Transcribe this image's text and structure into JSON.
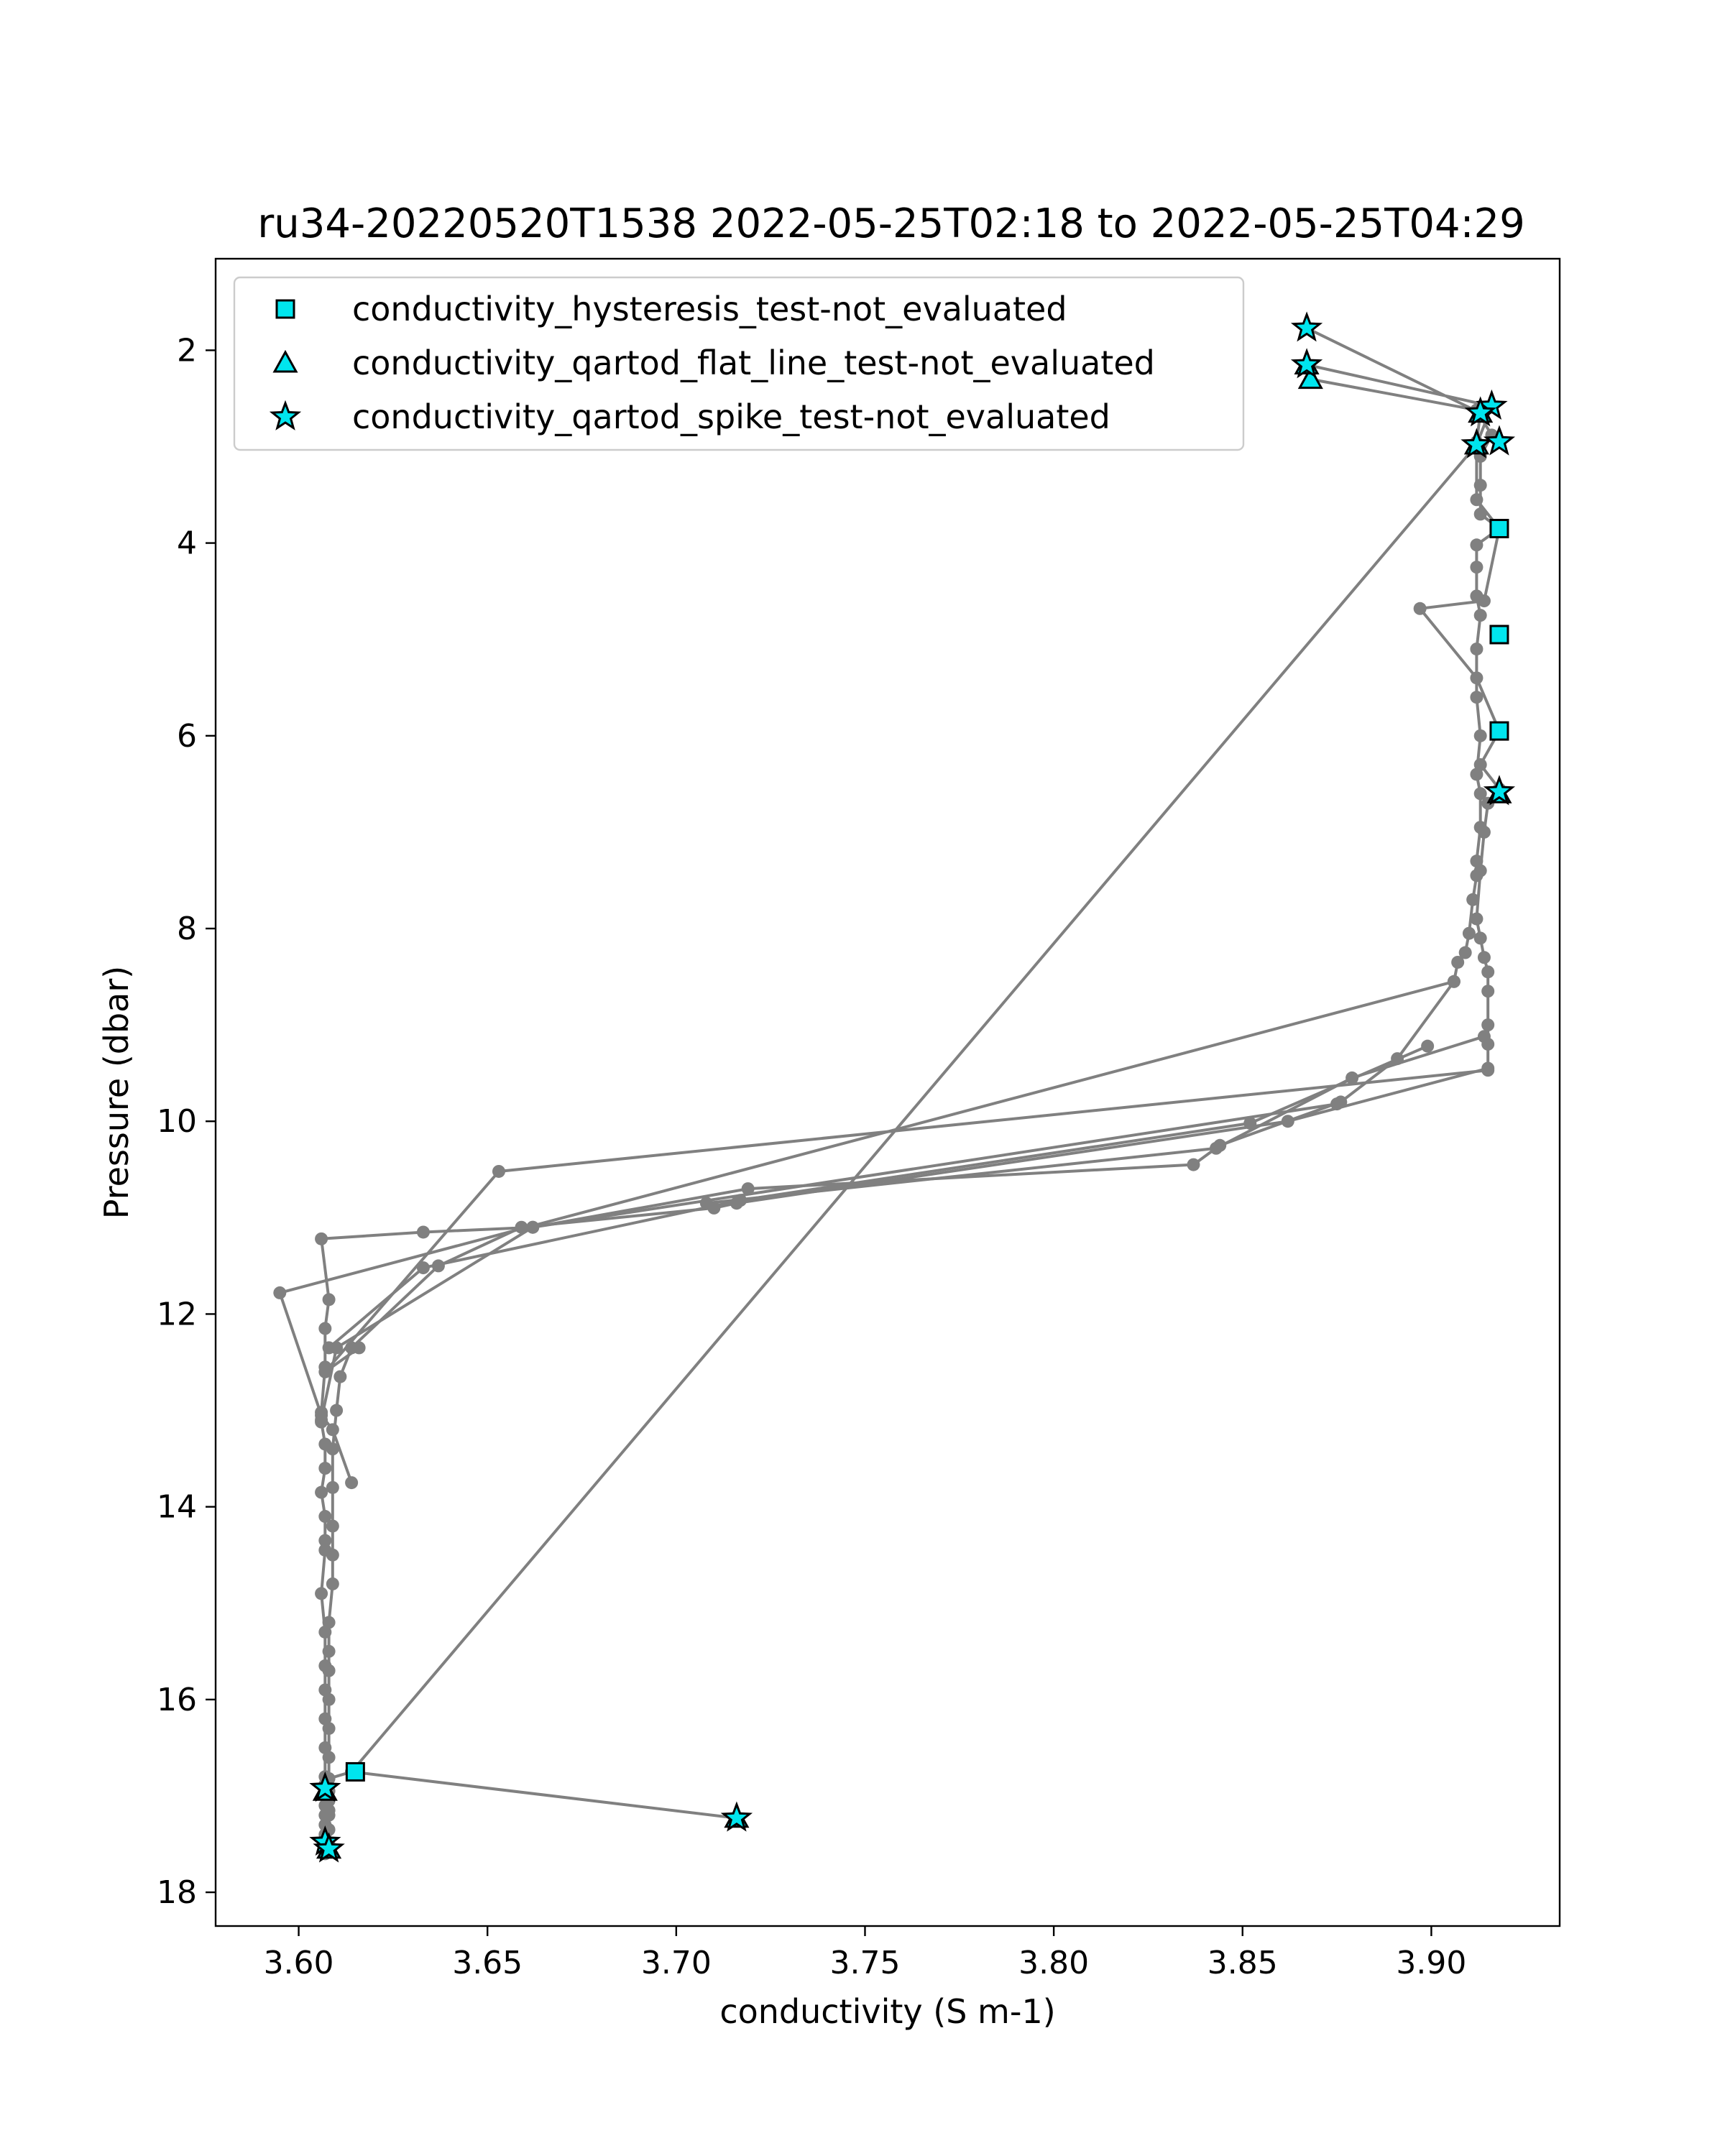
{
  "chart_data": {
    "type": "scatter",
    "title": "ru34-20220520T1538 2022-05-25T02:18 to 2022-05-25T04:29",
    "xlabel": "conductivity (S m-1)",
    "ylabel": "Pressure (dbar)",
    "xlim": [
      3.578,
      3.934
    ],
    "ylim": [
      18.35,
      1.05
    ],
    "y_inverted": true,
    "xticks": [
      3.6,
      3.65,
      3.7,
      3.75,
      3.8,
      3.85,
      3.9
    ],
    "xtick_labels": [
      "3.60",
      "3.65",
      "3.70",
      "3.75",
      "3.80",
      "3.85",
      "3.90"
    ],
    "yticks": [
      2,
      4,
      6,
      8,
      10,
      12,
      14,
      16,
      18
    ],
    "ytick_labels": [
      "2",
      "4",
      "6",
      "8",
      "10",
      "12",
      "14",
      "16",
      "18"
    ],
    "grid": false,
    "legend_position": "upper-left",
    "colors": {
      "profile_line": "#808080",
      "marker_fill": "#00e5ee",
      "marker_edge": "#000000"
    },
    "profile": {
      "x": [
        3.867,
        3.913,
        3.912,
        3.912,
        3.918,
        3.912,
        3.912,
        3.912,
        3.913,
        3.912,
        3.912,
        3.913,
        3.912,
        3.913,
        3.913,
        3.912,
        3.912,
        3.911,
        3.91,
        3.909,
        3.907,
        3.906,
        3.891,
        3.876,
        3.844,
        3.837,
        3.719,
        3.662,
        3.633,
        3.606,
        3.608,
        3.607,
        3.607,
        3.606,
        3.606,
        3.607,
        3.607,
        3.606,
        3.607,
        3.607,
        3.607,
        3.606,
        3.607,
        3.607,
        3.607,
        3.607,
        3.607,
        3.607,
        3.607,
        3.607,
        3.608,
        3.608,
        3.608,
        3.607,
        3.607,
        3.607,
        3.608,
        3.607,
        3.607,
        3.607,
        3.608,
        3.614,
        3.716,
        3.614,
        3.912,
        3.916,
        3.867,
        3.868,
        3.912,
        3.916,
        3.913,
        3.913,
        3.913,
        3.918,
        3.914,
        3.897,
        3.912,
        3.918,
        3.913,
        3.918,
        3.915,
        3.914,
        3.913,
        3.912,
        3.913,
        3.914,
        3.915,
        3.915,
        3.915,
        3.915,
        3.915,
        3.862,
        3.716,
        3.71,
        3.659,
        3.637,
        3.614,
        3.611,
        3.61,
        3.609,
        3.609,
        3.609,
        3.609,
        3.609,
        3.608,
        3.608,
        3.608,
        3.608,
        3.608,
        3.608,
        3.608,
        3.607,
        3.607,
        3.608,
        3.607,
        3.607,
        3.607,
        3.608
      ],
      "y": [
        1.77,
        2.65,
        2.95,
        3.55,
        3.85,
        4.02,
        4.25,
        4.55,
        4.75,
        5.1,
        5.6,
        6.0,
        6.4,
        6.6,
        6.95,
        7.3,
        7.45,
        7.7,
        8.05,
        8.25,
        8.35,
        8.55,
        9.35,
        9.8,
        10.25,
        10.45,
        10.7,
        11.1,
        11.15,
        11.22,
        11.85,
        12.15,
        12.55,
        13.02,
        13.12,
        13.35,
        13.6,
        13.85,
        14.1,
        14.35,
        14.45,
        14.9,
        15.3,
        15.65,
        15.9,
        16.2,
        16.5,
        16.8,
        17.0,
        17.1,
        17.2,
        17.35,
        17.5,
        17.55,
        17.48,
        17.3,
        17.15,
        16.95,
        16.92,
        16.88,
        16.82,
        16.75,
        17.23,
        16.75,
        2.98,
        2.58,
        2.15,
        2.3,
        2.62,
        2.88,
        3.1,
        3.4,
        3.7,
        3.85,
        4.6,
        4.68,
        5.4,
        5.95,
        6.3,
        6.55,
        6.7,
        7.0,
        7.4,
        7.9,
        8.1,
        8.3,
        8.45,
        8.65,
        9.0,
        9.2,
        9.45,
        10.0,
        10.85,
        10.9,
        11.1,
        11.5,
        12.35,
        12.65,
        13.0,
        13.4,
        13.8,
        14.2,
        14.5,
        14.8,
        15.2,
        15.5,
        15.7,
        16.0,
        16.3,
        16.6,
        16.95,
        17.0,
        17.4,
        17.55,
        17.6,
        17.45,
        17.2,
        17.05
      ],
      "extra_segments": [
        {
          "x": [
            3.906,
            3.595,
            3.606,
            3.609,
            3.614
          ],
          "y": [
            8.55,
            11.78,
            13.05,
            13.2,
            13.75
          ]
        },
        {
          "x": [
            3.915,
            3.653,
            3.607,
            3.616
          ],
          "y": [
            9.47,
            10.52,
            12.6,
            12.35
          ]
        },
        {
          "x": [
            3.899,
            3.852,
            3.717,
            3.633,
            3.608
          ],
          "y": [
            9.22,
            10.02,
            10.82,
            11.52,
            12.35
          ]
        },
        {
          "x": [
            3.875,
            3.662,
            3.61,
            3.606
          ],
          "y": [
            9.82,
            11.1,
            12.35,
            13.1
          ]
        },
        {
          "x": [
            3.914,
            3.879,
            3.843,
            3.708
          ],
          "y": [
            9.12,
            9.55,
            10.28,
            10.85
          ]
        }
      ]
    },
    "series": [
      {
        "name": "conductivity_hysteresis_test-not_evaluated",
        "marker": "square",
        "x": [
          3.918,
          3.918,
          3.918,
          3.615
        ],
        "y": [
          3.85,
          4.95,
          5.95,
          16.75
        ]
      },
      {
        "name": "conductivity_qartod_flat_line_test-not_evaluated",
        "marker": "triangle",
        "x": [
          3.868,
          3.867,
          3.913,
          3.912,
          3.918,
          3.607,
          3.608,
          3.716
        ],
        "y": [
          2.3,
          2.15,
          2.65,
          2.98,
          6.6,
          16.95,
          17.55,
          17.23
        ]
      },
      {
        "name": "conductivity_qartod_spike_test-not_evaluated",
        "marker": "star",
        "x": [
          3.867,
          3.867,
          3.916,
          3.913,
          3.912,
          3.918,
          3.918,
          3.607,
          3.607,
          3.608,
          3.716
        ],
        "y": [
          1.77,
          2.15,
          2.58,
          2.65,
          2.98,
          2.95,
          6.58,
          16.92,
          17.48,
          17.55,
          17.23
        ]
      }
    ]
  }
}
